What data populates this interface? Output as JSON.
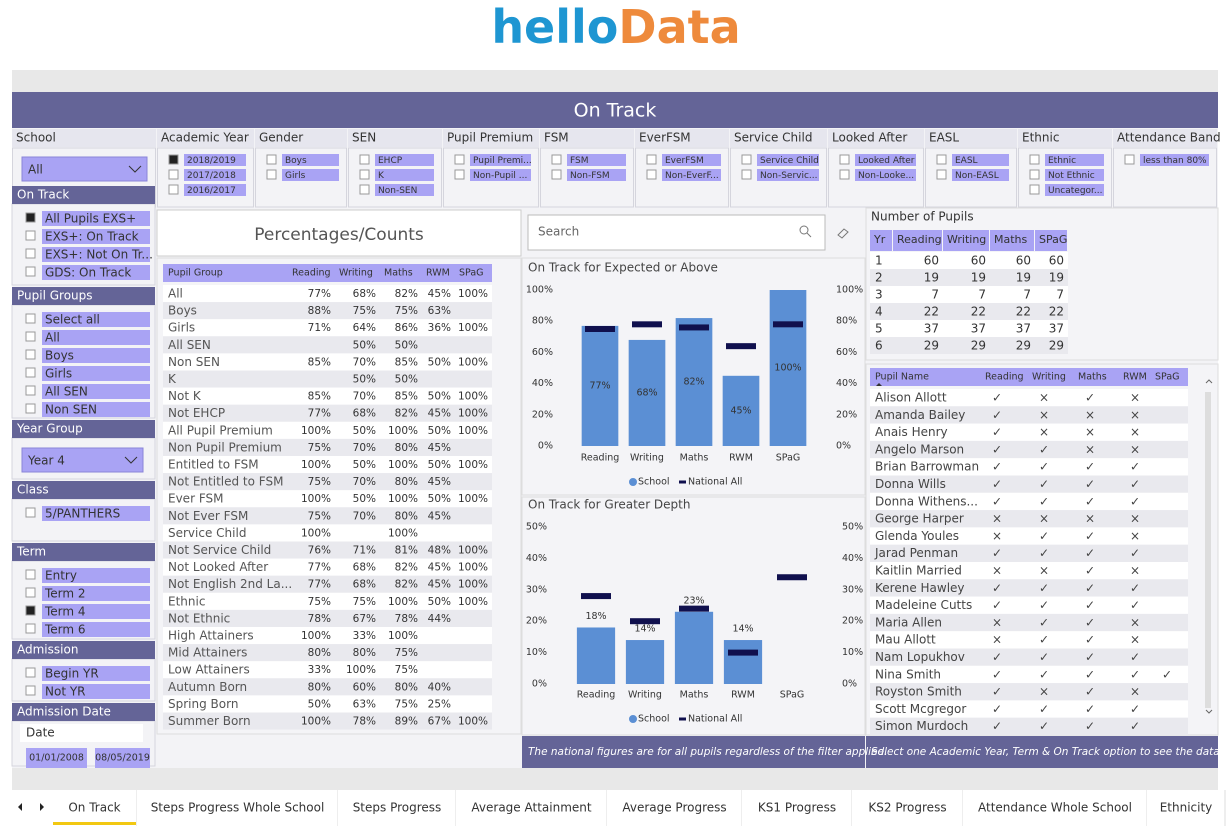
{
  "header": {
    "logo_hello": "hello",
    "logo_data": "Data",
    "title": "On Track"
  },
  "top_filters": [
    {
      "title": "School",
      "dropdown": "All"
    },
    {
      "title": "Academic Year",
      "items": [
        "2018/2019",
        "2017/2018",
        "2016/2017"
      ],
      "checked": 0
    },
    {
      "title": "Gender",
      "items": [
        "Boys",
        "Girls"
      ]
    },
    {
      "title": "SEN",
      "items": [
        "EHCP",
        "K",
        "Non-SEN"
      ]
    },
    {
      "title": "Pupil Premium",
      "items": [
        "Pupil Premi...",
        "Non-Pupil ..."
      ]
    },
    {
      "title": "FSM",
      "items": [
        "FSM",
        "Non-FSM"
      ]
    },
    {
      "title": "EverFSM",
      "items": [
        "EverFSM",
        "Non-EverF..."
      ]
    },
    {
      "title": "Service Child",
      "items": [
        "Service Child",
        "Non-Servic..."
      ]
    },
    {
      "title": "Looked After",
      "items": [
        "Looked After",
        "Non-Looke..."
      ]
    },
    {
      "title": "EASL",
      "items": [
        "EASL",
        "Non-EASL"
      ]
    },
    {
      "title": "Ethnic",
      "items": [
        "Ethnic",
        "Not Ethnic",
        "Uncategor..."
      ]
    },
    {
      "title": "Attendance Band",
      "items": [
        "less than 80%"
      ]
    }
  ],
  "side_filters": [
    {
      "title": "On Track",
      "items": [
        "All Pupils EXS+",
        "EXS+: On Track",
        "EXS+: Not On Tr...",
        "GDS: On Track"
      ],
      "checked": 0
    },
    {
      "title": "Pupil Groups",
      "items": [
        "Select all",
        "All",
        "Boys",
        "Girls",
        "All SEN",
        "Non SEN"
      ]
    },
    {
      "title": "Year Group",
      "dropdown": "Year 4"
    },
    {
      "title": "Class",
      "items": [
        "5/PANTHERS"
      ]
    },
    {
      "title": "Term",
      "items": [
        "Entry",
        "Term 2",
        "Term 4",
        "Term 6"
      ],
      "checked": 2
    },
    {
      "title": "Admission",
      "items": [
        "Begin YR",
        "Not YR"
      ]
    },
    {
      "title": "Admission Date",
      "field": "Date",
      "range": [
        "01/01/2008",
        "08/05/2019"
      ]
    }
  ],
  "percentages": {
    "title": "Percentages/Counts",
    "columns": [
      "Pupil Group",
      "Reading",
      "Writing",
      "Maths",
      "RWM",
      "SPaG"
    ],
    "rows": [
      [
        "All",
        "77%",
        "68%",
        "82%",
        "45%",
        "100%"
      ],
      [
        "Boys",
        "88%",
        "75%",
        "75%",
        "63%",
        null
      ],
      [
        "Girls",
        "71%",
        "64%",
        "86%",
        "36%",
        "100%"
      ],
      [
        "All SEN",
        null,
        "50%",
        "50%",
        null,
        null
      ],
      [
        "Non SEN",
        "85%",
        "70%",
        "85%",
        "50%",
        "100%"
      ],
      [
        "K",
        null,
        "50%",
        "50%",
        null,
        null
      ],
      [
        "Not K",
        "85%",
        "70%",
        "85%",
        "50%",
        "100%"
      ],
      [
        "Not EHCP",
        "77%",
        "68%",
        "82%",
        "45%",
        "100%"
      ],
      [
        "All Pupil Premium",
        "100%",
        "50%",
        "100%",
        "50%",
        "100%"
      ],
      [
        "Non Pupil Premium",
        "75%",
        "70%",
        "80%",
        "45%",
        null
      ],
      [
        "Entitled to FSM",
        "100%",
        "50%",
        "100%",
        "50%",
        "100%"
      ],
      [
        "Not Entitled to FSM",
        "75%",
        "70%",
        "80%",
        "45%",
        null
      ],
      [
        "Ever FSM",
        "100%",
        "50%",
        "100%",
        "50%",
        "100%"
      ],
      [
        "Not Ever FSM",
        "75%",
        "70%",
        "80%",
        "45%",
        null
      ],
      [
        "Service Child",
        "100%",
        null,
        "100%",
        null,
        null
      ],
      [
        "Not Service Child",
        "76%",
        "71%",
        "81%",
        "48%",
        "100%"
      ],
      [
        "Not Looked After",
        "77%",
        "68%",
        "82%",
        "45%",
        "100%"
      ],
      [
        "Not English 2nd La...",
        "77%",
        "68%",
        "82%",
        "45%",
        "100%"
      ],
      [
        "Ethnic",
        "75%",
        "75%",
        "100%",
        "50%",
        "100%"
      ],
      [
        "Not Ethnic",
        "78%",
        "67%",
        "78%",
        "44%",
        null
      ],
      [
        "High Attainers",
        "100%",
        "33%",
        "100%",
        null,
        null
      ],
      [
        "Mid Attainers",
        "80%",
        "80%",
        "75%",
        null,
        null
      ],
      [
        "Low Attainers",
        "33%",
        "100%",
        "75%",
        null,
        null
      ],
      [
        "Autumn Born",
        "80%",
        "60%",
        "80%",
        "40%",
        null
      ],
      [
        "Spring Born",
        "50%",
        "63%",
        "75%",
        "25%",
        null
      ],
      [
        "Summer Born",
        "100%",
        "78%",
        "89%",
        "67%",
        "100%"
      ]
    ]
  },
  "search": {
    "placeholder": "Search"
  },
  "chart_data": [
    {
      "type": "bar",
      "title": "On Track for Expected or Above",
      "categories": [
        "Reading",
        "Writing",
        "Maths",
        "RWM",
        "SPaG"
      ],
      "series": [
        {
          "name": "School",
          "color": "#5b8fd4",
          "values": [
            77,
            68,
            82,
            45,
            100
          ],
          "value_labels": [
            "77%",
            "68%",
            "82%",
            "45%",
            "100%"
          ]
        },
        {
          "name": "National All",
          "color": "#10104e",
          "type": "marker",
          "axis": "y2",
          "values": [
            75,
            78,
            76,
            64,
            78
          ]
        }
      ],
      "ylim": [
        0,
        100
      ],
      "yticks": [
        {
          "value": 0,
          "label": "0%"
        },
        {
          "value": 20,
          "label": "20%"
        },
        {
          "value": 40,
          "label": "40%"
        },
        {
          "value": 60,
          "label": "60%"
        },
        {
          "value": 80,
          "label": "80%"
        },
        {
          "value": 100,
          "label": "100%"
        }
      ],
      "y2lim": [
        0,
        100
      ],
      "y2ticks": [
        {
          "value": 0,
          "label": "0%"
        },
        {
          "value": 20,
          "label": "20%"
        },
        {
          "value": 40,
          "label": "40%"
        },
        {
          "value": 60,
          "label": "60%"
        },
        {
          "value": 80,
          "label": "80%"
        },
        {
          "value": 100,
          "label": "100%"
        }
      ],
      "legend": "bottom"
    },
    {
      "type": "bar",
      "title": "On Track for Greater Depth",
      "categories": [
        "Reading",
        "Writing",
        "Maths",
        "RWM",
        "SPaG"
      ],
      "series": [
        {
          "name": "School",
          "color": "#5b8fd4",
          "values": [
            18,
            14,
            23,
            14,
            null
          ],
          "value_labels": [
            "18%",
            "14%",
            "23%",
            "14%",
            null
          ]
        },
        {
          "name": "National All",
          "color": "#10104e",
          "type": "marker",
          "axis": "y2",
          "values": [
            28,
            20,
            24,
            10,
            34
          ]
        }
      ],
      "ylim": [
        0,
        50
      ],
      "yticks": [
        {
          "value": 0,
          "label": "0%"
        },
        {
          "value": 10,
          "label": "10%"
        },
        {
          "value": 20,
          "label": "20%"
        },
        {
          "value": 30,
          "label": "30%"
        },
        {
          "value": 40,
          "label": "40%"
        },
        {
          "value": 50,
          "label": "50%"
        }
      ],
      "y2lim": [
        0,
        50
      ],
      "y2ticks": [
        {
          "value": 0,
          "label": "0%"
        },
        {
          "value": 10,
          "label": "10%"
        },
        {
          "value": 20,
          "label": "20%"
        },
        {
          "value": 30,
          "label": "30%"
        },
        {
          "value": 40,
          "label": "40%"
        },
        {
          "value": 50,
          "label": "50%"
        }
      ],
      "legend": "bottom"
    }
  ],
  "pupil_counts": {
    "title": "Number of Pupils",
    "columns": [
      "Yr",
      "Reading",
      "Writing",
      "Maths",
      "SPaG"
    ],
    "rows": [
      [
        1,
        60,
        60,
        60,
        60
      ],
      [
        2,
        19,
        19,
        19,
        19
      ],
      [
        3,
        7,
        7,
        7,
        7
      ],
      [
        4,
        22,
        22,
        22,
        22
      ],
      [
        5,
        37,
        37,
        37,
        37
      ],
      [
        6,
        29,
        29,
        29,
        29
      ]
    ]
  },
  "pupils": {
    "columns": [
      "Pupil Name",
      "Reading",
      "Writing",
      "Maths",
      "RWM",
      "SPaG"
    ],
    "rows": [
      [
        "Alison Allott",
        "✓",
        "×",
        "✓",
        "×",
        null
      ],
      [
        "Amanda Bailey",
        "✓",
        "×",
        "×",
        "×",
        null
      ],
      [
        "Anais Henry",
        "✓",
        "×",
        "×",
        "×",
        null
      ],
      [
        "Angelo Marson",
        "✓",
        "✓",
        "×",
        "×",
        null
      ],
      [
        "Brian Barrowman",
        "✓",
        "✓",
        "✓",
        "✓",
        null
      ],
      [
        "Donna Wills",
        "✓",
        "✓",
        "✓",
        "✓",
        null
      ],
      [
        "Donna Withens...",
        "✓",
        "✓",
        "✓",
        "✓",
        null
      ],
      [
        "George Harper",
        "×",
        "×",
        "×",
        "×",
        null
      ],
      [
        "Glenda Youles",
        "×",
        "✓",
        "✓",
        "×",
        null
      ],
      [
        "Jarad Penman",
        "✓",
        "✓",
        "✓",
        "✓",
        null
      ],
      [
        "Kaitlin Married",
        "×",
        "×",
        "✓",
        "×",
        null
      ],
      [
        "Kerene Hawley",
        "✓",
        "✓",
        "✓",
        "✓",
        null
      ],
      [
        "Madeleine Cutts",
        "✓",
        "✓",
        "✓",
        "✓",
        null
      ],
      [
        "Maria Allen",
        "×",
        "✓",
        "✓",
        "×",
        null
      ],
      [
        "Mau Allott",
        "×",
        "✓",
        "✓",
        "×",
        null
      ],
      [
        "Nam Lopukhov",
        "✓",
        "✓",
        "✓",
        "✓",
        null
      ],
      [
        "Nina Smith",
        "✓",
        "✓",
        "✓",
        "✓",
        "✓"
      ],
      [
        "Royston Smith",
        "✓",
        "×",
        "✓",
        "×",
        null
      ],
      [
        "Scott Mcgregor",
        "✓",
        "✓",
        "✓",
        "✓",
        null
      ],
      [
        "Simon Murdoch",
        "✓",
        "✓",
        "✓",
        "✓",
        null
      ]
    ]
  },
  "notes": [
    "The national figures are for all pupils regardless of the filter applied.",
    "Select one Academic Year, Term & On Track option to see the data."
  ],
  "tabs": {
    "items": [
      "On Track",
      "Steps Progress Whole School",
      "Steps Progress",
      "Average Attainment",
      "Average Progress",
      "KS1 Progress",
      "KS2 Progress",
      "Attendance Whole School",
      "Ethnicity"
    ],
    "active": 0
  }
}
